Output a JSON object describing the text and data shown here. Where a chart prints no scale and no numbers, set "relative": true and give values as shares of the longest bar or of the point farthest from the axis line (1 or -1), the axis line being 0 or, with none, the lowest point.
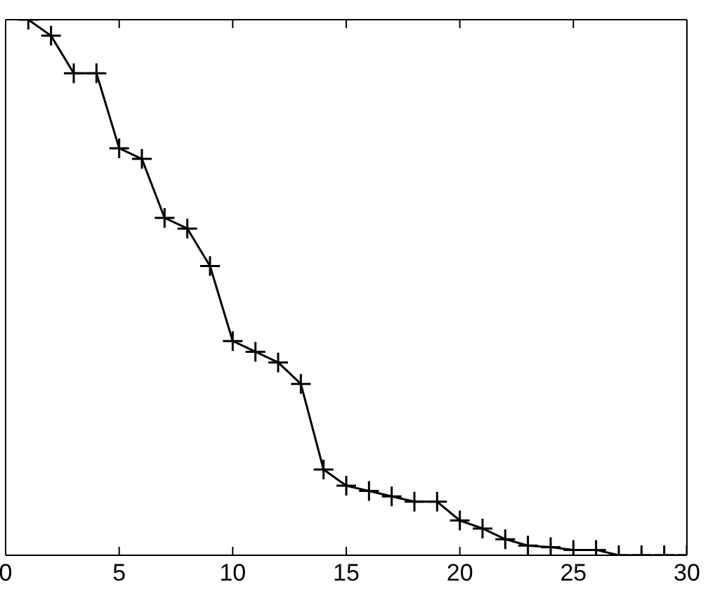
{
  "chart_data": {
    "type": "line",
    "relative": true,
    "x": [
      1,
      2,
      3,
      4,
      5,
      6,
      7,
      8,
      9,
      10,
      11,
      12,
      13,
      14,
      15,
      16,
      17,
      18,
      19,
      20,
      21,
      22,
      23,
      24,
      25,
      26,
      27,
      28,
      29,
      30
    ],
    "series": [
      {
        "color": "#000000",
        "values": [
          1,
          0.97,
          0.9,
          0.9,
          0.76,
          0.74,
          0.63,
          0.61,
          0.54,
          0.4,
          0.38,
          0.36,
          0.32,
          0.16,
          0.13,
          0.12,
          0.11,
          0.1,
          0.1,
          0.065,
          0.05,
          0.03,
          0.018,
          0.015,
          0.01,
          0.01,
          0,
          0,
          0,
          0
        ]
      }
    ],
    "xlim": [
      0,
      30
    ],
    "xticks": [
      0,
      5,
      10,
      15,
      20,
      25,
      30
    ],
    "marker": "cross",
    "line_style": "solid",
    "grid": false,
    "legend": false
  }
}
